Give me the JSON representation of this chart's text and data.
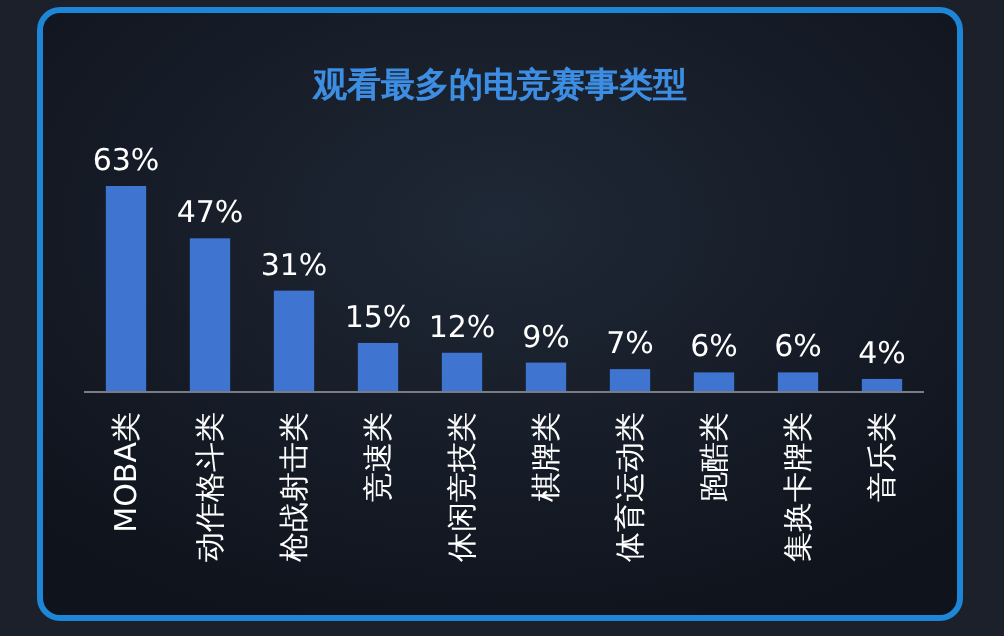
{
  "chart_data": {
    "type": "bar",
    "title": "观看最多的电竞赛事类型",
    "categories": [
      "MOBA类",
      "动作格斗类",
      "枪战射击类",
      "竞速类",
      "休闲竞技类",
      "棋牌类",
      "体育运动类",
      "跑酷类",
      "集换卡牌类",
      "音乐类"
    ],
    "values": [
      63,
      47,
      31,
      15,
      12,
      9,
      7,
      6,
      6,
      4
    ],
    "value_labels": [
      "63%",
      "47%",
      "31%",
      "15%",
      "12%",
      "9%",
      "7%",
      "6%",
      "6%",
      "4%"
    ],
    "color": "#3f74d0"
  }
}
